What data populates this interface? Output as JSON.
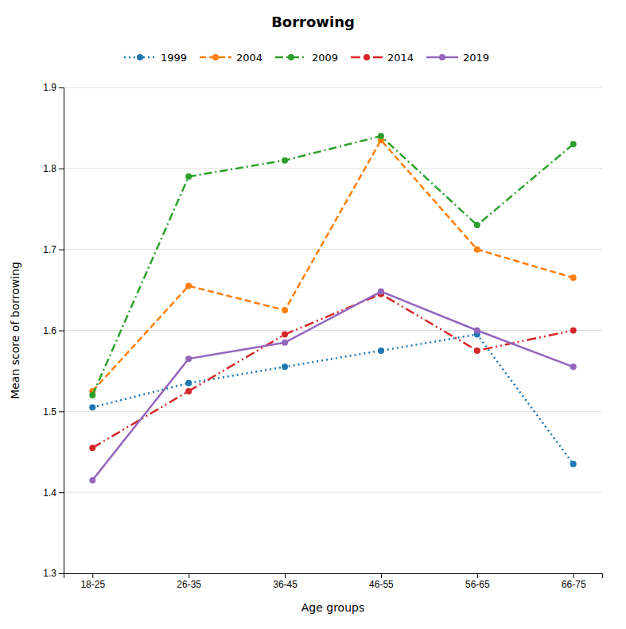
{
  "chart_data": {
    "type": "line",
    "title": "Borrowing",
    "x_label": "Age groups",
    "y_label": "Mean score of borrowing",
    "categories": [
      "18-25",
      "26-35",
      "36-45",
      "46-55",
      "56-65",
      "66-75"
    ],
    "series": [
      {
        "name": "1999",
        "values": [
          1.505,
          1.535,
          1.555,
          1.575,
          1.595,
          1.435
        ],
        "line_style": "dotted",
        "marker": "circle"
      },
      {
        "name": "2004",
        "values": [
          1.525,
          1.655,
          1.625,
          1.835,
          1.7,
          1.665
        ],
        "line_style": "dashed",
        "marker": "circle"
      },
      {
        "name": "2009",
        "values": [
          1.52,
          1.79,
          1.81,
          1.84,
          1.73,
          1.83
        ],
        "line_style": "dashdot",
        "marker": "circle"
      },
      {
        "name": "2014",
        "values": [
          1.455,
          1.525,
          1.595,
          1.645,
          1.575,
          1.6
        ],
        "line_style": "dashdotdot",
        "marker": "circle"
      },
      {
        "name": "2019",
        "values": [
          1.415,
          1.565,
          1.585,
          1.648,
          1.6,
          1.555
        ],
        "line_style": "solid",
        "marker": "circle"
      }
    ],
    "ylim": [
      1.3,
      1.9
    ],
    "yticks": [
      1.3,
      1.4,
      1.5,
      1.6,
      1.7,
      1.8,
      1.9
    ],
    "grid": true,
    "legend": "top"
  }
}
